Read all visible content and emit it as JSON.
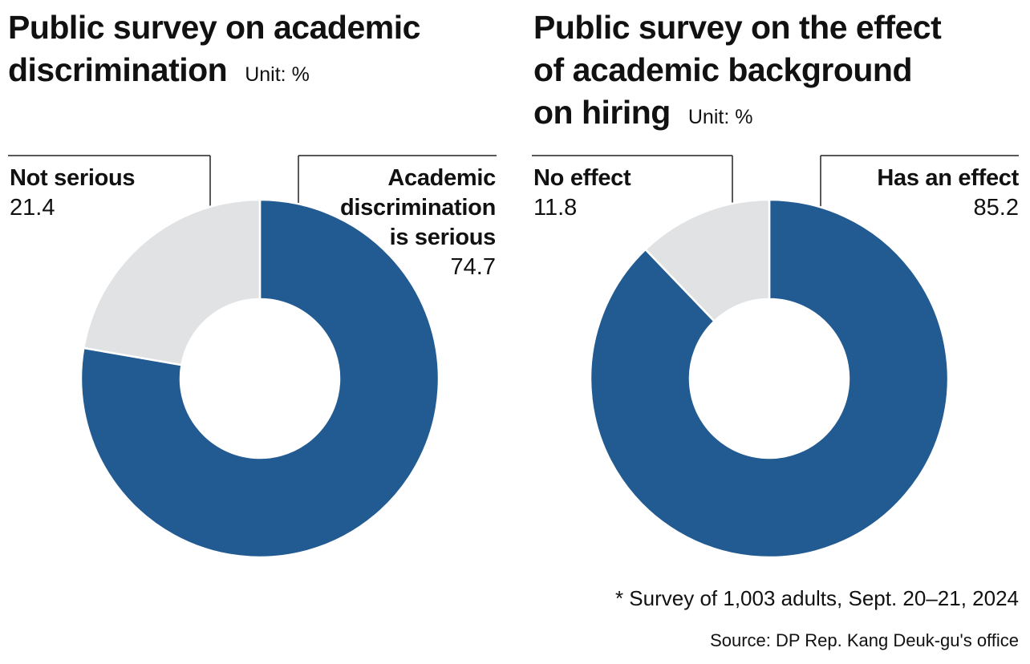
{
  "chart_data": [
    {
      "type": "pie",
      "title": "Public survey on academic discrimination",
      "unit": "Unit: %",
      "slices": [
        {
          "label": "Academic discrimination is serious",
          "value": 74.7
        },
        {
          "label": "Not serious",
          "value": 21.4
        }
      ],
      "colors": {
        "primary": "#225a92",
        "secondary": "#e1e2e4"
      }
    },
    {
      "type": "pie",
      "title": "Public survey on the effect of academic background on hiring",
      "unit": "Unit: %",
      "slices": [
        {
          "label": "Has an effect",
          "value": 85.2
        },
        {
          "label": "No effect",
          "value": 11.8
        }
      ],
      "colors": {
        "primary": "#225a92",
        "secondary": "#e1e2e4"
      }
    }
  ],
  "labels": {
    "left_title_line1": "Public survey on academic",
    "left_title_line2": "discrimination",
    "left_unit": "Unit: %",
    "left_secondary_name": "Not serious",
    "left_secondary_value": "21.4",
    "left_primary_name_line1": "Academic",
    "left_primary_name_line2": "discrimination",
    "left_primary_name_line3": "is serious",
    "left_primary_value": "74.7",
    "right_title_line1": "Public survey on the effect",
    "right_title_line2": "of academic background",
    "right_title_line3": "on hiring",
    "right_unit": "Unit: %",
    "right_secondary_name": "No effect",
    "right_secondary_value": "11.8",
    "right_primary_name": "Has an effect",
    "right_primary_value": "85.2"
  },
  "footnotes": {
    "survey": "* Survey of 1,003 adults, Sept. 20–21, 2024",
    "source": "Source: DP Rep. Kang Deuk-gu's office"
  }
}
